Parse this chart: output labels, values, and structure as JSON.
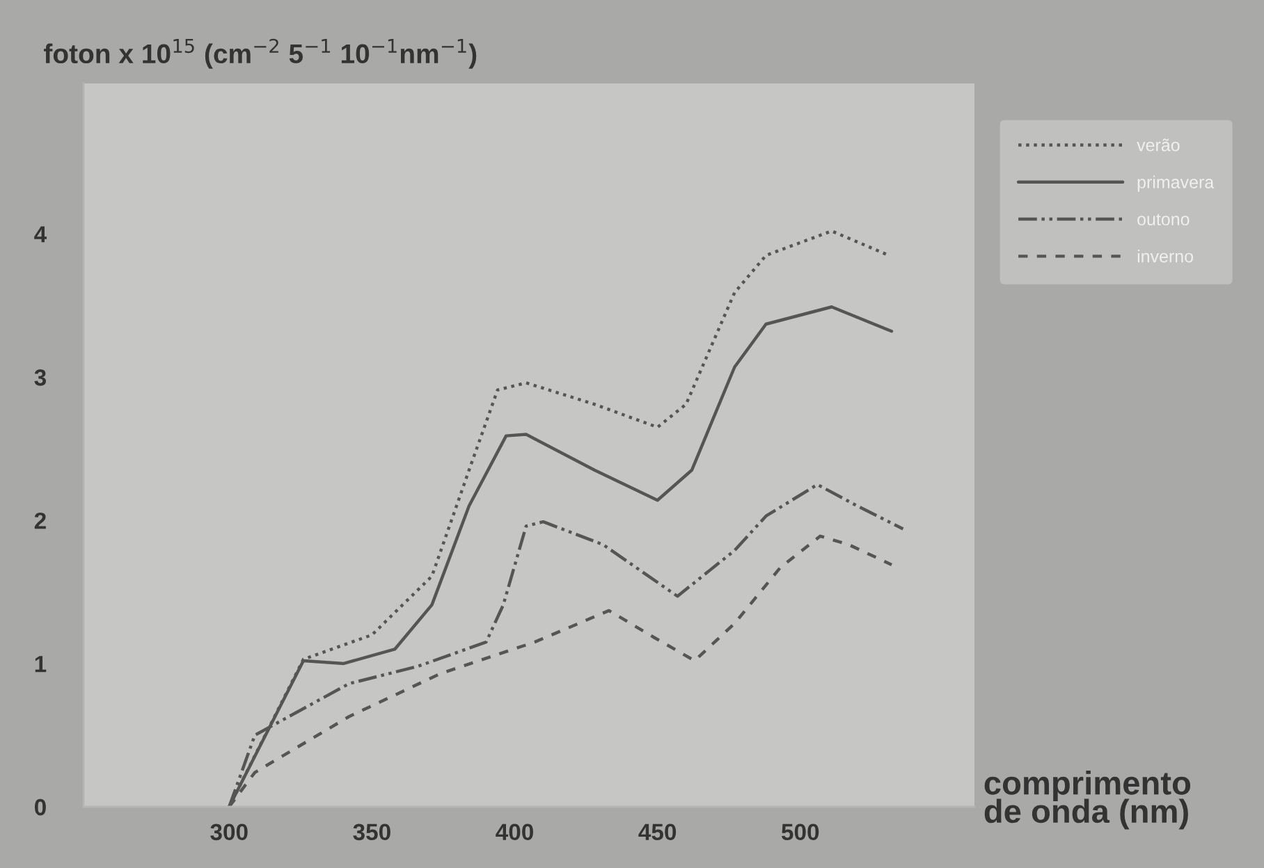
{
  "chart_data": {
    "type": "line",
    "ylabel": "foton x 10$^{15}$ (cm$^{−2}$ 5$^{−1}$ 10$^{−1}$nm$^{−1}$)",
    "xlabel": "comprimento\nde onda (nm)",
    "xlim": [
      249,
      561
    ],
    "ylim": [
      0,
      5.05
    ],
    "xticks": [
      300,
      350,
      400,
      450,
      500
    ],
    "yticks": [
      0,
      1,
      2,
      3,
      4
    ],
    "grid": false,
    "legend": "top right",
    "marker": "none",
    "series": [
      {
        "name": "verão",
        "color": "#555555",
        "line_style": "dotted",
        "x": [
          300,
          326,
          350,
          371,
          384,
          394,
          404,
          428,
          450,
          460,
          477,
          488,
          511,
          531
        ],
        "values": [
          0,
          1.03,
          1.2,
          1.61,
          2.35,
          2.91,
          2.96,
          2.81,
          2.65,
          2.81,
          3.59,
          3.85,
          4.02,
          3.85
        ]
      },
      {
        "name": "primavera",
        "color": "#555555",
        "line_style": "solid",
        "x": [
          300,
          326,
          340,
          358,
          371,
          384,
          397,
          404,
          428,
          450,
          462,
          477,
          488,
          511,
          532
        ],
        "values": [
          0,
          1.02,
          1.0,
          1.1,
          1.41,
          2.1,
          2.59,
          2.6,
          2.35,
          2.14,
          2.35,
          3.07,
          3.37,
          3.49,
          3.32
        ]
      },
      {
        "name": "outono",
        "color": "#555555",
        "line_style": "dashdot",
        "x": [
          300,
          309,
          342,
          366,
          390,
          396,
          404,
          410,
          431,
          457,
          477,
          488,
          506,
          520,
          536
        ],
        "values": [
          0,
          0.5,
          0.86,
          0.98,
          1.15,
          1.41,
          1.96,
          1.99,
          1.83,
          1.47,
          1.79,
          2.03,
          2.25,
          2.1,
          1.94
        ]
      },
      {
        "name": "inverno",
        "color": "#555555",
        "line_style": "dashed",
        "x": [
          300,
          309,
          342,
          374,
          407,
          433,
          449,
          463,
          477,
          493,
          507,
          517,
          532
        ],
        "values": [
          0,
          0.24,
          0.63,
          0.93,
          1.15,
          1.37,
          1.18,
          1.02,
          1.28,
          1.67,
          1.89,
          1.83,
          1.69
        ]
      }
    ]
  }
}
